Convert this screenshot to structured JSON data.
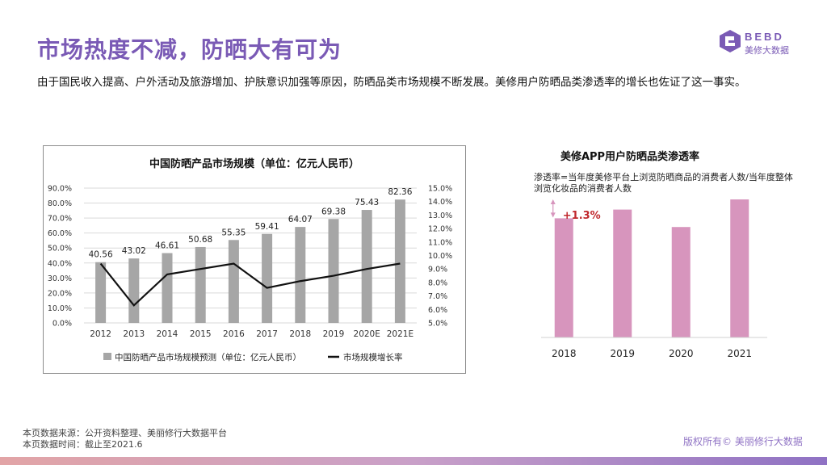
{
  "page_title": "市场热度不减，防晒大有可为",
  "subtitle": "由于国民收入提高、户外活动及旅游增加、护肤意识加强等原因，防晒品类市场规模不断发展。美修用户防晒品类渗透率的增长也佐证了这一事实。",
  "logo": {
    "en": "BEBD",
    "cn": "美修大数据",
    "icon": "bebd-logo-icon",
    "color": "#7a5ab5"
  },
  "footer": {
    "source": "本页数据来源：公开资料整理、美丽修行大数据平台",
    "time": "本页数据时间：截止至2021.6",
    "copyright": "版权所有© 美丽修行大数据"
  },
  "chart_data": [
    {
      "type": "bar+line",
      "title": "中国防晒产品市场规模（单位：亿元人民币）",
      "categories": [
        "2012",
        "2013",
        "2014",
        "2015",
        "2016",
        "2017",
        "2018",
        "2019",
        "2020E",
        "2021E"
      ],
      "series": [
        {
          "name": "中国防晒产品市场规模预测（单位：亿元人民币）",
          "type": "bar",
          "axis": "left",
          "values": [
            40.56,
            43.02,
            46.61,
            50.68,
            55.35,
            59.41,
            64.07,
            69.38,
            75.43,
            82.36
          ],
          "labels": [
            "40.56",
            "43.02",
            "46.61",
            "50.68",
            "55.35",
            "59.41",
            "64.07",
            "69.38",
            "75.43",
            "82.36"
          ],
          "color": "#a6a6a6"
        },
        {
          "name": "市场规模增长率",
          "type": "line",
          "axis": "right",
          "values": [
            9.4,
            6.3,
            8.6,
            9.0,
            9.4,
            7.6,
            8.1,
            8.5,
            9.0,
            9.4
          ],
          "color": "#111111"
        }
      ],
      "left_axis": {
        "ylim": [
          0,
          90
        ],
        "ticks": [
          "0.0%",
          "10.0%",
          "20.0%",
          "30.0%",
          "40.0%",
          "50.0%",
          "60.0%",
          "70.0%",
          "80.0%",
          "90.0%"
        ]
      },
      "right_axis": {
        "ylim": [
          5,
          15
        ],
        "ticks": [
          "5.0%",
          "6.0%",
          "7.0%",
          "8.0%",
          "9.0%",
          "10.0%",
          "11.0%",
          "12.0%",
          "13.0%",
          "14.0%",
          "15.0%"
        ]
      },
      "grid": true,
      "legend_position": "bottom"
    },
    {
      "type": "bar",
      "title": "美修APP用户防晒品类渗透率",
      "note": "渗透率=当年度美修平台上浏览防晒商品的消费者人数/当年度整体浏览化妆品的消费者人数",
      "categories": [
        "2018",
        "2019",
        "2020",
        "2021"
      ],
      "values": [
        8.2,
        8.8,
        7.6,
        9.5
      ],
      "ylim": [
        0,
        10
      ],
      "annotation": "+1.3%",
      "annotation_color": "#c0282d",
      "color": "#d795bd"
    }
  ]
}
